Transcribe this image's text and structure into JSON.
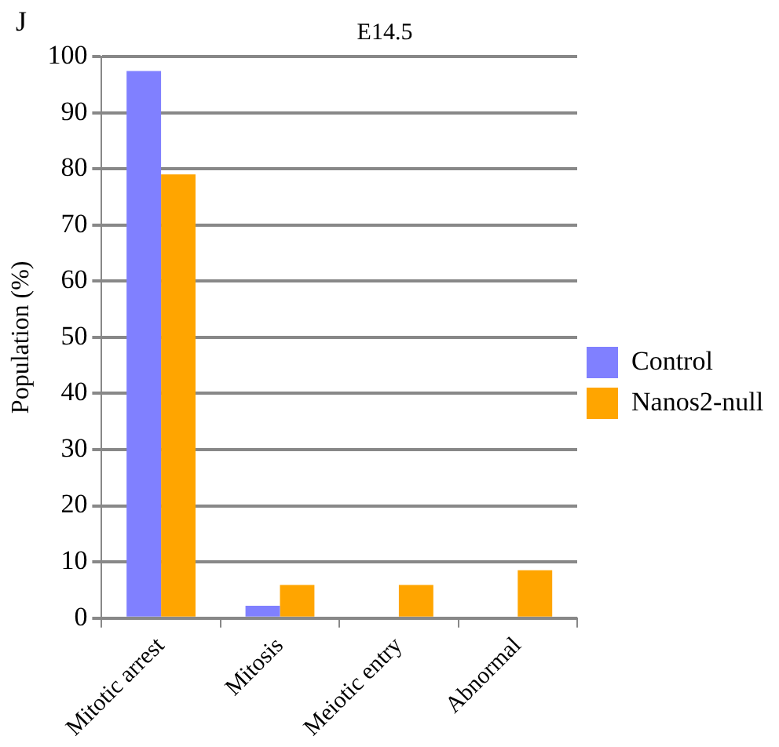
{
  "chart_data": {
    "type": "bar",
    "title": "E14.5",
    "ylabel": "Population (%)",
    "annotations": [
      "J"
    ],
    "categories": [
      "Mitotic arrest",
      "Mitosis",
      "Meiotic entry",
      "Abnormal"
    ],
    "series": [
      {
        "name": "Control",
        "color": "#8080ff",
        "values": [
          97.4,
          2.2,
          0,
          0
        ]
      },
      {
        "name": "Nanos2-null",
        "color": "#ffa500",
        "values": [
          79,
          5.9,
          5.9,
          8.5
        ]
      }
    ],
    "ylim": [
      0,
      100
    ],
    "yticks": [
      0,
      10,
      20,
      30,
      40,
      50,
      60,
      70,
      80,
      90,
      100
    ],
    "grid": "y",
    "legend": "right"
  }
}
